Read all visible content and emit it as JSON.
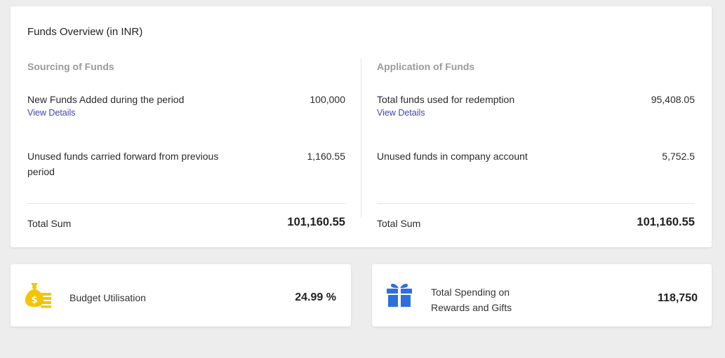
{
  "overview": {
    "title": "Funds Overview (in INR)",
    "sourcing": {
      "heading": "Sourcing of Funds",
      "rows": [
        {
          "label": "New Funds Added during the period",
          "value": "100,000",
          "link": "View Details"
        },
        {
          "label": "Unused funds carried forward from previous period",
          "value": "1,160.55"
        }
      ],
      "total_label": "Total Sum",
      "total_value": "101,160.55"
    },
    "application": {
      "heading": "Application of Funds",
      "rows": [
        {
          "label": "Total funds used for redemption",
          "value": "95,408.05",
          "link": "View Details"
        },
        {
          "label": "Unused funds in company account",
          "value": "5,752.5"
        }
      ],
      "total_label": "Total Sum",
      "total_value": "101,160.55"
    }
  },
  "stats": [
    {
      "label": "Budget Utilisation",
      "value": "24.99 %",
      "icon": "money-bag-coins-icon",
      "color": "#f5c400"
    },
    {
      "label": "Total Spending on Rewards and Gifts",
      "value": "118,750",
      "icon": "gift-icon",
      "color": "#2f6fdb"
    }
  ],
  "colors": {
    "link": "#3d46a8",
    "background": "#ededed",
    "muted": "#9a9a9a"
  }
}
